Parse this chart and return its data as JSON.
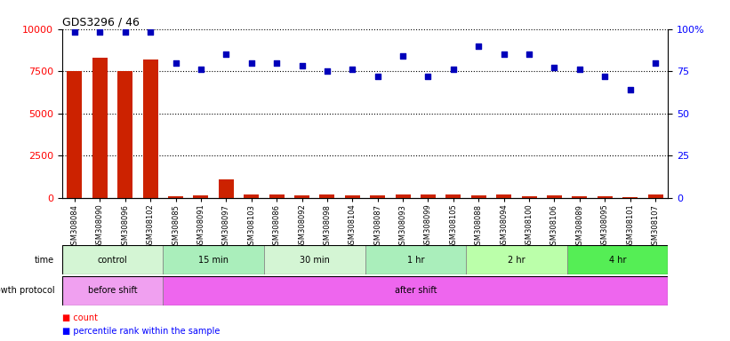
{
  "title": "GDS3296 / 46",
  "samples": [
    "GSM308084",
    "GSM308090",
    "GSM308096",
    "GSM308102",
    "GSM308085",
    "GSM308091",
    "GSM308097",
    "GSM308103",
    "GSM308086",
    "GSM308092",
    "GSM308098",
    "GSM308104",
    "GSM308087",
    "GSM308093",
    "GSM308099",
    "GSM308105",
    "GSM308088",
    "GSM308094",
    "GSM308100",
    "GSM308106",
    "GSM308089",
    "GSM308095",
    "GSM308101",
    "GSM308107"
  ],
  "counts": [
    7500,
    8300,
    7500,
    8200,
    100,
    150,
    1100,
    200,
    200,
    150,
    200,
    150,
    150,
    200,
    200,
    200,
    150,
    200,
    100,
    150,
    100,
    100,
    50,
    200
  ],
  "percentiles": [
    98,
    98,
    98,
    98,
    80,
    76,
    85,
    80,
    80,
    78,
    75,
    76,
    72,
    84,
    72,
    76,
    90,
    85,
    85,
    77,
    76,
    72,
    64,
    80
  ],
  "time_groups": [
    {
      "label": "control",
      "start": 0,
      "end": 4,
      "color": "#d4f5d4"
    },
    {
      "label": "15 min",
      "start": 4,
      "end": 8,
      "color": "#aaeebb"
    },
    {
      "label": "30 min",
      "start": 8,
      "end": 12,
      "color": "#d4f5d4"
    },
    {
      "label": "1 hr",
      "start": 12,
      "end": 16,
      "color": "#aaeebb"
    },
    {
      "label": "2 hr",
      "start": 16,
      "end": 20,
      "color": "#bbffaa"
    },
    {
      "label": "4 hr",
      "start": 20,
      "end": 24,
      "color": "#55ee55"
    }
  ],
  "growth_groups": [
    {
      "label": "before shift",
      "start": 0,
      "end": 4,
      "color": "#f0a0f0"
    },
    {
      "label": "after shift",
      "start": 4,
      "end": 24,
      "color": "#ee66ee"
    }
  ],
  "bar_color": "#cc2200",
  "dot_color": "#0000bb",
  "left_yticks": [
    0,
    2500,
    5000,
    7500,
    10000
  ],
  "right_yticks": [
    0,
    25,
    50,
    75,
    100
  ],
  "ylim_left": [
    0,
    10000
  ],
  "ylim_right": [
    0,
    100
  ],
  "grid_color": "black",
  "grid_linestyle": "dotted",
  "grid_linewidth": 0.8,
  "time_label": "time",
  "growth_label": "growth protocol",
  "legend_count_label": "count",
  "legend_pct_label": "percentile rank within the sample"
}
